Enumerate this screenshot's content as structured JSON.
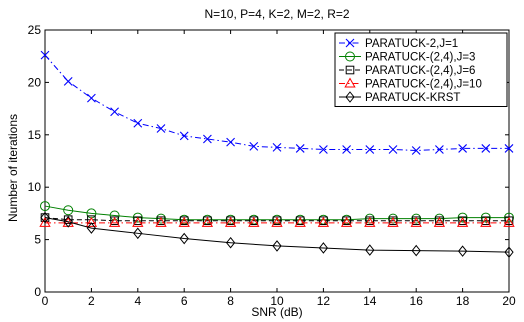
{
  "chart_data": {
    "type": "line",
    "title": "N=10, P=4, K=2, M=2, R=2",
    "xlabel": "SNR (dB)",
    "ylabel": "Number of iterations",
    "xlim": [
      0,
      20
    ],
    "ylim": [
      0,
      25
    ],
    "xticks": [
      "0",
      "2",
      "4",
      "6",
      "8",
      "10",
      "12",
      "14",
      "16",
      "18",
      "20"
    ],
    "yticks": [
      "0",
      "5",
      "10",
      "15",
      "20",
      "25"
    ],
    "grid": false,
    "legend_position": "top-right",
    "x": [
      0,
      1,
      2,
      3,
      4,
      5,
      6,
      7,
      8,
      9,
      10,
      11,
      12,
      13,
      14,
      15,
      16,
      17,
      18,
      19,
      20
    ],
    "series": [
      {
        "name": "PARATUCK-2,J=1",
        "color": "#0000ff",
        "line_style": "dashdot",
        "marker": "x",
        "values": [
          22.6,
          20.1,
          18.5,
          17.2,
          16.1,
          15.6,
          14.9,
          14.6,
          14.3,
          13.9,
          13.8,
          13.7,
          13.6,
          13.6,
          13.6,
          13.6,
          13.5,
          13.6,
          13.7,
          13.7,
          13.7
        ]
      },
      {
        "name": "PARATUCK-(2,4),J=3",
        "color": "#008000",
        "line_style": "solid",
        "marker": "circle",
        "values": [
          8.2,
          7.8,
          7.5,
          7.3,
          7.1,
          7.0,
          6.9,
          6.9,
          6.9,
          6.9,
          6.9,
          6.9,
          6.9,
          6.9,
          7.0,
          7.0,
          7.0,
          7.0,
          7.1,
          7.1,
          7.1
        ]
      },
      {
        "name": "PARATUCK-(2,4),J=6",
        "color": "#000000",
        "line_style": "dashed",
        "marker": "square",
        "values": [
          7.1,
          6.9,
          6.9,
          6.8,
          6.8,
          6.8,
          6.8,
          6.8,
          6.8,
          6.8,
          6.8,
          6.8,
          6.8,
          6.8,
          6.8,
          6.8,
          6.8,
          6.8,
          6.8,
          6.8,
          6.8
        ]
      },
      {
        "name": "PARATUCK-(2,4),J=10",
        "color": "#ff0000",
        "line_style": "dashdot",
        "marker": "triangle",
        "values": [
          6.6,
          6.6,
          6.6,
          6.6,
          6.6,
          6.6,
          6.6,
          6.6,
          6.6,
          6.6,
          6.6,
          6.6,
          6.6,
          6.6,
          6.6,
          6.6,
          6.6,
          6.6,
          6.6,
          6.6,
          6.6
        ]
      },
      {
        "name": "PARATUCK-KRST",
        "color": "#000000",
        "line_style": "solid",
        "marker": "diamond",
        "values": [
          7.1,
          6.7,
          6.1,
          null,
          5.6,
          null,
          5.1,
          null,
          4.7,
          null,
          4.4,
          null,
          4.2,
          null,
          4.0,
          null,
          3.95,
          null,
          3.9,
          null,
          3.8
        ]
      }
    ]
  }
}
